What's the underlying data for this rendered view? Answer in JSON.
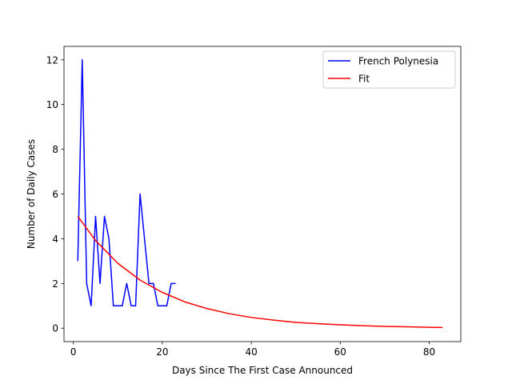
{
  "chart_data": {
    "type": "line",
    "title": "",
    "xlabel": "Days Since The First Case Announced",
    "ylabel": "Number of Daily Cases",
    "xlim": [
      -2.1,
      87.1
    ],
    "ylim": [
      -0.6,
      12.6
    ],
    "xticks": [
      0,
      20,
      40,
      60,
      80
    ],
    "yticks": [
      0,
      2,
      4,
      6,
      8,
      10,
      12
    ],
    "grid": false,
    "legend_position": "top-right",
    "series": [
      {
        "name": "French Polynesia",
        "color": "#0000ff",
        "x": [
          1,
          2,
          3,
          4,
          5,
          6,
          7,
          8,
          9,
          10,
          11,
          12,
          13,
          14,
          15,
          16,
          17,
          18,
          19,
          20,
          21,
          22,
          23
        ],
        "y": [
          3,
          12,
          2,
          1,
          5,
          2,
          5,
          4,
          1,
          1,
          1,
          2,
          1,
          1,
          6,
          4,
          2,
          2,
          1,
          1,
          1,
          2,
          2
        ]
      },
      {
        "name": "Fit",
        "color": "#ff0000",
        "x": [
          1,
          5,
          10,
          15,
          20,
          25,
          30,
          35,
          40,
          45,
          50,
          55,
          60,
          65,
          70,
          75,
          80,
          83
        ],
        "y": [
          5.0,
          3.92,
          2.9,
          2.15,
          1.6,
          1.18,
          0.88,
          0.65,
          0.48,
          0.36,
          0.26,
          0.2,
          0.15,
          0.11,
          0.08,
          0.06,
          0.04,
          0.03
        ]
      }
    ]
  }
}
